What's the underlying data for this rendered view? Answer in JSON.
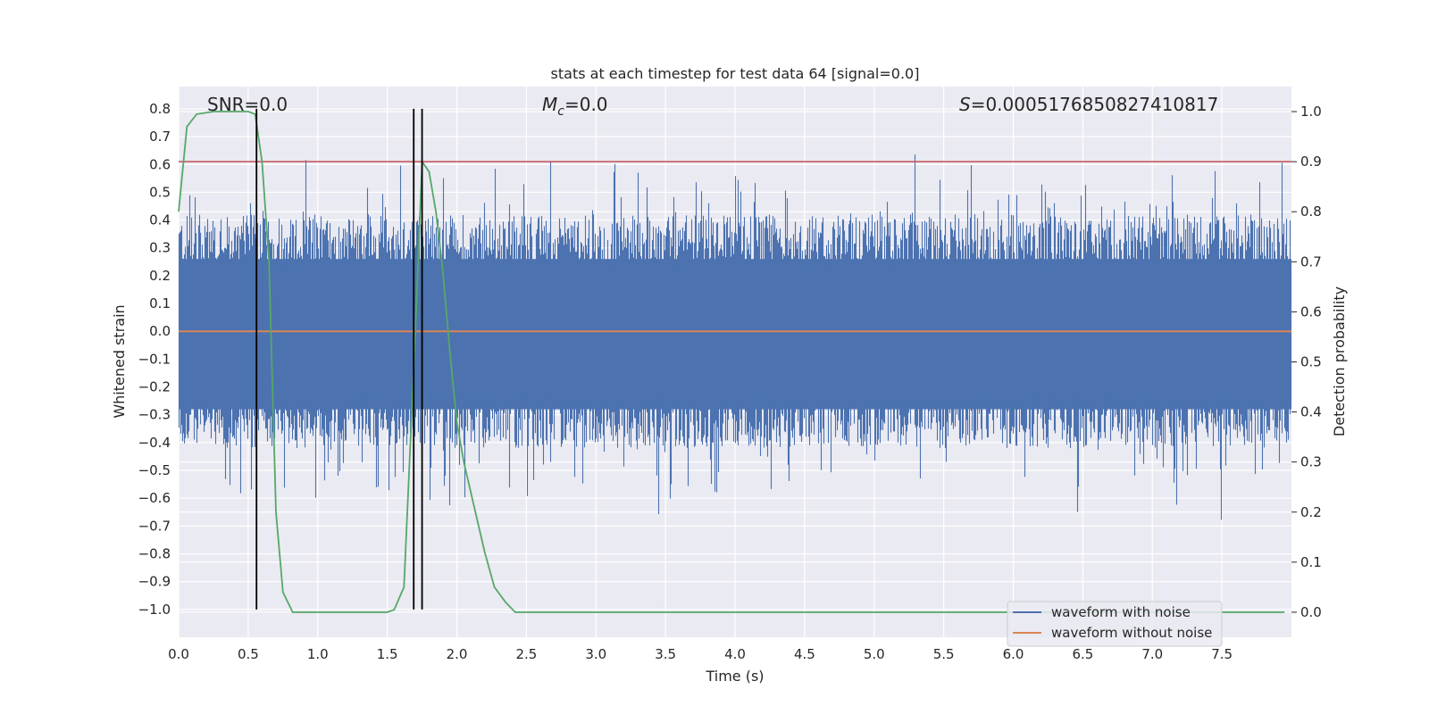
{
  "chart_data": {
    "type": "line",
    "title": "stats at each timestep for test data 64 [signal=0.0]",
    "xlabel": "Time (s)",
    "ylabel": "Whitened strain",
    "y2label": "Detection probability",
    "xlim": [
      0.0,
      8.0
    ],
    "ylim": [
      -1.1,
      0.88
    ],
    "y2lim": [
      -0.05,
      1.05
    ],
    "x_ticks": [
      0.0,
      0.5,
      1.0,
      1.5,
      2.0,
      2.5,
      3.0,
      3.5,
      4.0,
      4.5,
      5.0,
      5.5,
      6.0,
      6.5,
      7.0,
      7.5
    ],
    "x_tick_labels": [
      "0.0",
      "0.5",
      "1.0",
      "1.5",
      "2.0",
      "2.5",
      "3.0",
      "3.5",
      "4.0",
      "4.5",
      "5.0",
      "5.5",
      "6.0",
      "6.5",
      "7.0",
      "7.5"
    ],
    "y_ticks": [
      0.8,
      0.7,
      0.6,
      0.5,
      0.4,
      0.3,
      0.2,
      0.1,
      0.0,
      -0.1,
      -0.2,
      -0.3,
      -0.4,
      -0.5,
      -0.6,
      -0.7,
      -0.8,
      -0.9,
      -1.0
    ],
    "y_tick_labels": [
      "0.8",
      "0.7",
      "0.6",
      "0.5",
      "0.4",
      "0.3",
      "0.2",
      "0.1",
      "0.0",
      "−0.1",
      "−0.2",
      "−0.3",
      "−0.4",
      "−0.5",
      "−0.6",
      "−0.7",
      "−0.8",
      "−0.9",
      "−1.0"
    ],
    "y2_ticks": [
      1.0,
      0.9,
      0.8,
      0.7,
      0.6,
      0.5,
      0.4,
      0.3,
      0.2,
      0.1,
      0.0
    ],
    "y2_tick_labels": [
      "1.0",
      "0.9",
      "0.8",
      "0.7",
      "0.6",
      "0.5",
      "0.4",
      "0.3",
      "0.2",
      "0.1",
      "0.0"
    ],
    "grid": true,
    "annotations": {
      "snr": "SNR=0.0",
      "mc": "Mc=0.0",
      "s": "S=0.0005176850827410817"
    },
    "series": [
      {
        "name": "waveform with noise",
        "color": "#4c72b0",
        "axis": "left",
        "kind": "noise",
        "duration": 8.0,
        "core_band": [
          -0.28,
          0.26
        ],
        "typical_peak_max": 0.71,
        "typical_trough_min": -0.85
      },
      {
        "name": "waveform without noise",
        "color": "#dd8452",
        "axis": "left",
        "x": [
          0.0,
          8.0
        ],
        "values": [
          0.0,
          0.0
        ]
      },
      {
        "name": "",
        "color": "#55a868",
        "axis": "right",
        "x": [
          0.0,
          0.06,
          0.13,
          0.25,
          0.38,
          0.5,
          0.55,
          0.6,
          0.65,
          0.7,
          0.75,
          0.82,
          0.9,
          1.0,
          1.2,
          1.5,
          1.55,
          1.62,
          1.7,
          1.75,
          1.8,
          1.85,
          1.9,
          1.95,
          2.0,
          2.05,
          2.1,
          2.15,
          2.2,
          2.27,
          2.35,
          2.42,
          2.55,
          3.0,
          4.0,
          5.0,
          6.0,
          7.0,
          7.95
        ],
        "values": [
          0.8,
          0.97,
          0.995,
          1.0,
          1.0,
          1.0,
          0.995,
          0.9,
          0.7,
          0.2,
          0.04,
          0.0,
          0.0,
          0.0,
          0.0,
          0.0,
          0.005,
          0.05,
          0.55,
          0.9,
          0.88,
          0.8,
          0.68,
          0.52,
          0.38,
          0.3,
          0.24,
          0.18,
          0.12,
          0.05,
          0.02,
          0.0,
          0.0,
          0.0,
          0.0,
          0.0,
          0.0,
          0.0,
          0.0
        ]
      }
    ],
    "threshold": {
      "axis": "right",
      "value": 0.9,
      "color": "#c44e52"
    },
    "vlines": {
      "x": [
        0.56,
        1.69,
        1.75
      ],
      "y_range": [
        -1.0,
        0.8
      ],
      "color": "#000000"
    },
    "legend": {
      "placement": "lower-right",
      "entries": [
        {
          "label": "waveform with noise",
          "color": "#4c72b0"
        },
        {
          "label": "waveform without noise",
          "color": "#dd8452"
        }
      ]
    },
    "colors": {
      "background": "#eaeaf2",
      "grid": "#ffffff"
    }
  }
}
